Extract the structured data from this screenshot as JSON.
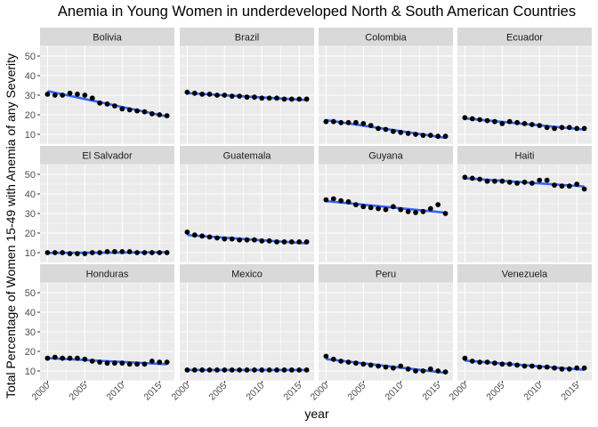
{
  "chart_data": {
    "type": "scatter",
    "title": "Anemia in Young Women in underdeveloped North & South American Countries",
    "xlabel": "year",
    "ylabel": "Total Percentage of Women 15-49 with Anemia of any Severity",
    "x": [
      2000,
      2001,
      2002,
      2003,
      2004,
      2005,
      2006,
      2007,
      2008,
      2009,
      2010,
      2011,
      2012,
      2013,
      2014,
      2015,
      2016
    ],
    "xlim": [
      1999,
      2017
    ],
    "ylim": [
      5,
      55
    ],
    "x_ticks": [
      "2000",
      "2005",
      "2010",
      "2015"
    ],
    "y_ticks": [
      "10",
      "20",
      "30",
      "40",
      "50"
    ],
    "grid": true,
    "trend_line": "linear smoothing per panel",
    "colors": {
      "points": "#000000",
      "trend": "#3366FF",
      "panel_bg": "#EBEBEB",
      "strip_bg": "#D9D9D9",
      "grid": "#FFFFFF"
    },
    "facets": [
      {
        "name": "Bolivia",
        "values": [
          30.5,
          30.0,
          30.0,
          31.0,
          30.5,
          30.0,
          28.5,
          26.0,
          25.5,
          24.5,
          23.0,
          22.5,
          22.0,
          21.5,
          20.5,
          20.0,
          19.5
        ]
      },
      {
        "name": "Brazil",
        "values": [
          31.5,
          31.0,
          30.5,
          30.5,
          30.0,
          30.0,
          29.5,
          29.5,
          29.0,
          29.0,
          28.5,
          28.5,
          28.5,
          28.0,
          28.0,
          28.0,
          28.0
        ]
      },
      {
        "name": "Colombia",
        "values": [
          16.5,
          16.5,
          16.0,
          16.0,
          16.0,
          15.5,
          14.5,
          13.0,
          12.5,
          11.5,
          11.0,
          10.5,
          10.0,
          9.5,
          9.5,
          9.0,
          9.0
        ]
      },
      {
        "name": "Ecuador",
        "values": [
          18.5,
          18.0,
          17.5,
          17.0,
          16.5,
          15.5,
          16.5,
          16.0,
          15.5,
          15.0,
          14.5,
          13.5,
          13.0,
          13.5,
          13.5,
          13.0,
          13.0
        ]
      },
      {
        "name": "El Salvador",
        "values": [
          10.0,
          10.0,
          10.0,
          9.5,
          9.5,
          9.5,
          10.0,
          10.0,
          10.5,
          10.5,
          10.5,
          10.5,
          10.0,
          10.0,
          10.0,
          10.0,
          10.0
        ]
      },
      {
        "name": "Guatemala",
        "values": [
          20.5,
          19.0,
          18.5,
          18.0,
          17.5,
          17.0,
          17.0,
          16.5,
          16.5,
          16.5,
          16.0,
          16.0,
          15.5,
          15.5,
          15.5,
          15.5,
          15.5
        ]
      },
      {
        "name": "Guyana",
        "values": [
          37.0,
          37.5,
          36.5,
          36.0,
          34.5,
          33.5,
          33.0,
          32.5,
          32.0,
          33.5,
          32.0,
          31.0,
          30.5,
          31.0,
          32.5,
          34.5,
          30.0
        ]
      },
      {
        "name": "Haiti",
        "values": [
          48.5,
          48.0,
          47.5,
          46.5,
          46.5,
          46.5,
          46.0,
          45.5,
          46.0,
          45.5,
          47.0,
          47.0,
          44.5,
          44.0,
          44.0,
          45.0,
          42.5
        ]
      },
      {
        "name": "Honduras",
        "values": [
          16.5,
          17.0,
          16.5,
          16.5,
          16.5,
          16.0,
          15.0,
          14.5,
          14.0,
          14.0,
          14.0,
          13.5,
          13.5,
          13.5,
          15.0,
          14.5,
          14.5
        ]
      },
      {
        "name": "Mexico",
        "values": [
          10.5,
          10.5,
          10.5,
          10.5,
          10.5,
          10.5,
          10.5,
          10.5,
          10.5,
          10.5,
          10.5,
          10.5,
          10.5,
          10.5,
          10.5,
          10.5,
          10.5
        ]
      },
      {
        "name": "Peru",
        "values": [
          17.5,
          16.0,
          15.0,
          14.5,
          14.0,
          13.5,
          13.0,
          12.5,
          12.0,
          11.5,
          12.5,
          11.0,
          10.0,
          10.0,
          11.0,
          10.0,
          9.5
        ]
      },
      {
        "name": "Venezuela",
        "values": [
          16.5,
          15.0,
          14.5,
          14.5,
          14.0,
          13.5,
          13.5,
          13.0,
          12.5,
          12.5,
          12.0,
          12.0,
          11.5,
          11.0,
          11.0,
          11.5,
          11.5
        ]
      }
    ]
  }
}
